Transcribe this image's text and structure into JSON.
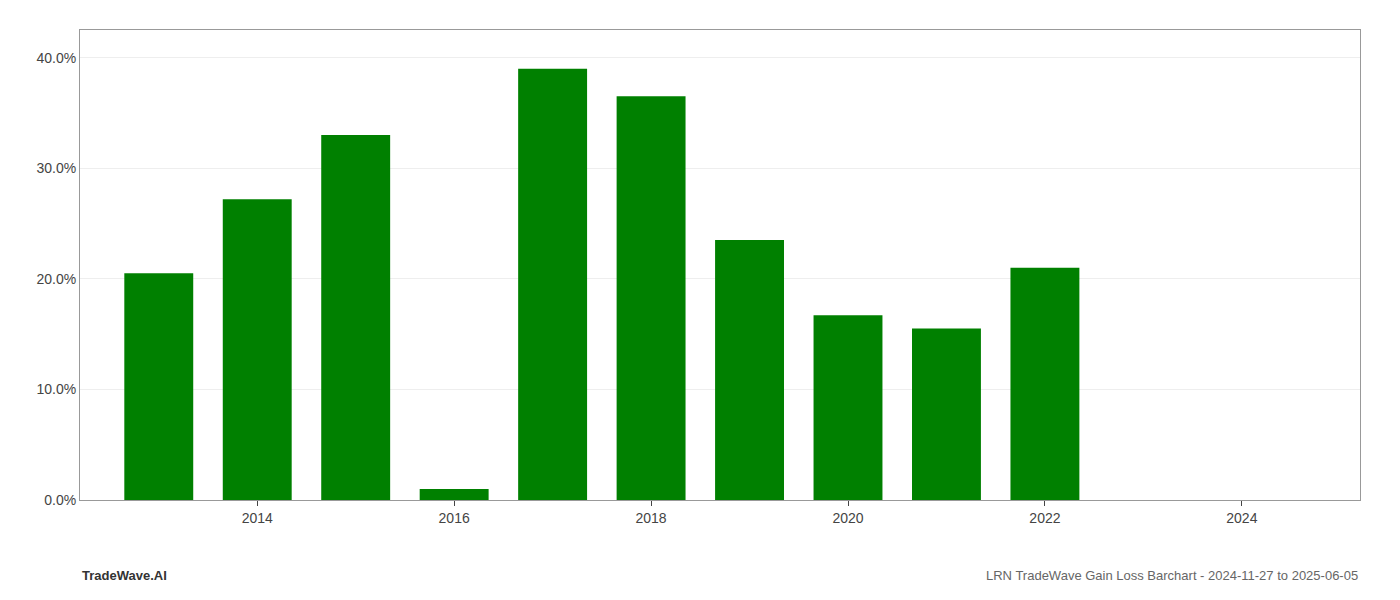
{
  "chart_data": {
    "type": "bar",
    "x": [
      2013,
      2014,
      2015,
      2016,
      2017,
      2018,
      2019,
      2020,
      2021,
      2022
    ],
    "values": [
      0.205,
      0.272,
      0.33,
      0.01,
      0.39,
      0.365,
      0.235,
      0.167,
      0.155,
      0.21
    ],
    "color": "#008000",
    "xlim": [
      2012.2,
      2025.2
    ],
    "xticks": [
      2014,
      2016,
      2018,
      2020,
      2022,
      2024
    ],
    "ylim": [
      0.0,
      0.425
    ],
    "yticks": [
      {
        "value": 0.0,
        "label": "0.0%"
      },
      {
        "value": 0.1,
        "label": "10.0%"
      },
      {
        "value": 0.2,
        "label": "20.0%"
      },
      {
        "value": 0.3,
        "label": "30.0%"
      },
      {
        "value": 0.4,
        "label": "40.0%"
      }
    ],
    "grid": true,
    "annotations": [
      "TradeWave.AI",
      "LRN TradeWave Gain Loss Barchart - 2024-11-27 to 2025-06-05"
    ]
  }
}
